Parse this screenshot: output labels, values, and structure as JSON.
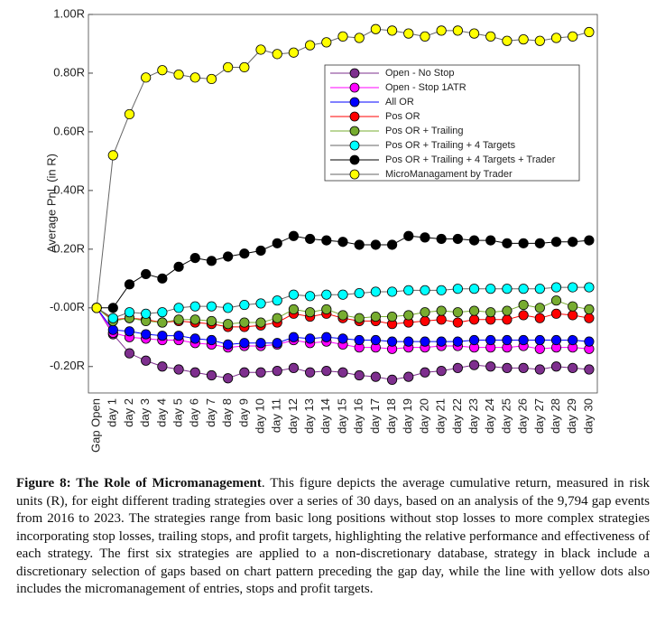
{
  "chart_data": {
    "type": "line",
    "ylabel": "Average PnL (in R)",
    "categories": [
      "Gap Open",
      "day 1",
      "day 2",
      "day 3",
      "day 4",
      "day 5",
      "day 6",
      "day 7",
      "day 8",
      "day 9",
      "day 10",
      "day 11",
      "day 12",
      "day 13",
      "day 14",
      "day 15",
      "day 16",
      "day 17",
      "day 18",
      "day 19",
      "day 20",
      "day 21",
      "day 22",
      "day 23",
      "day 24",
      "day 25",
      "day 26",
      "day 27",
      "day 28",
      "day 29",
      "day 30"
    ],
    "ylim": [
      -0.29,
      1.0
    ],
    "yticks": [
      {
        "value": -0.2,
        "label": "-0.20R"
      },
      {
        "value": 0,
        "label": "-0.00R"
      },
      {
        "value": 0.2,
        "label": "0.20R"
      },
      {
        "value": 0.4,
        "label": "0.40R"
      },
      {
        "value": 0.6,
        "label": "0.60R"
      },
      {
        "value": 0.8,
        "label": "0.80R"
      },
      {
        "value": 1.0,
        "label": "1.00R"
      }
    ],
    "series": [
      {
        "name": "Open - No Stop",
        "color": "#7e2f8e",
        "values": [
          0,
          -0.09,
          -0.155,
          -0.18,
          -0.2,
          -0.21,
          -0.22,
          -0.23,
          -0.24,
          -0.22,
          -0.22,
          -0.215,
          -0.205,
          -0.22,
          -0.215,
          -0.22,
          -0.23,
          -0.235,
          -0.245,
          -0.235,
          -0.22,
          -0.215,
          -0.205,
          -0.195,
          -0.2,
          -0.205,
          -0.205,
          -0.21,
          -0.2,
          -0.205,
          -0.21
        ]
      },
      {
        "name": "Open - Stop 1ATR",
        "color": "#ff00ff",
        "values": [
          0,
          -0.085,
          -0.1,
          -0.105,
          -0.11,
          -0.11,
          -0.12,
          -0.125,
          -0.135,
          -0.13,
          -0.13,
          -0.125,
          -0.11,
          -0.12,
          -0.115,
          -0.125,
          -0.135,
          -0.135,
          -0.14,
          -0.135,
          -0.135,
          -0.13,
          -0.13,
          -0.135,
          -0.135,
          -0.135,
          -0.13,
          -0.14,
          -0.135,
          -0.135,
          -0.14
        ]
      },
      {
        "name": "All OR",
        "color": "#0000ff",
        "values": [
          0,
          -0.075,
          -0.08,
          -0.09,
          -0.095,
          -0.095,
          -0.105,
          -0.11,
          -0.125,
          -0.12,
          -0.12,
          -0.12,
          -0.1,
          -0.105,
          -0.1,
          -0.105,
          -0.11,
          -0.11,
          -0.115,
          -0.115,
          -0.115,
          -0.115,
          -0.115,
          -0.11,
          -0.11,
          -0.11,
          -0.11,
          -0.11,
          -0.11,
          -0.11,
          -0.115
        ]
      },
      {
        "name": "Pos OR",
        "color": "#ff0000",
        "values": [
          0,
          -0.04,
          -0.035,
          -0.04,
          -0.05,
          -0.045,
          -0.05,
          -0.055,
          -0.065,
          -0.065,
          -0.06,
          -0.05,
          -0.02,
          -0.03,
          -0.02,
          -0.035,
          -0.045,
          -0.045,
          -0.055,
          -0.05,
          -0.045,
          -0.04,
          -0.05,
          -0.04,
          -0.04,
          -0.04,
          -0.025,
          -0.035,
          -0.02,
          -0.025,
          -0.035
        ]
      },
      {
        "name": "Pos OR + Trailing",
        "color": "#77ac30",
        "values": [
          0,
          -0.045,
          -0.035,
          -0.045,
          -0.05,
          -0.04,
          -0.04,
          -0.045,
          -0.055,
          -0.05,
          -0.05,
          -0.035,
          -0.005,
          -0.015,
          -0.005,
          -0.025,
          -0.035,
          -0.03,
          -0.03,
          -0.025,
          -0.015,
          -0.01,
          -0.015,
          -0.01,
          -0.015,
          -0.01,
          0.01,
          0,
          0.025,
          0.005,
          -0.005
        ]
      },
      {
        "name": "Pos OR + Trailing + 4 Targets",
        "color": "#00ffff",
        "values": [
          0,
          -0.035,
          -0.015,
          -0.02,
          -0.015,
          0,
          0.005,
          0.005,
          0,
          0.01,
          0.015,
          0.025,
          0.045,
          0.04,
          0.045,
          0.045,
          0.05,
          0.055,
          0.055,
          0.06,
          0.06,
          0.06,
          0.065,
          0.065,
          0.065,
          0.065,
          0.065,
          0.065,
          0.07,
          0.07,
          0.07
        ]
      },
      {
        "name": "Pos OR + Trailing + 4 Targets + Trader",
        "color": "#000000",
        "values": [
          0,
          0,
          0.08,
          0.115,
          0.1,
          0.14,
          0.17,
          0.16,
          0.175,
          0.185,
          0.195,
          0.22,
          0.245,
          0.235,
          0.23,
          0.225,
          0.215,
          0.215,
          0.215,
          0.245,
          0.24,
          0.235,
          0.235,
          0.23,
          0.23,
          0.22,
          0.22,
          0.22,
          0.225,
          0.225,
          0.23
        ]
      },
      {
        "name": "MicroManagament by Trader",
        "color": "#ffff00",
        "values": [
          0,
          0.52,
          0.66,
          0.785,
          0.81,
          0.795,
          0.785,
          0.78,
          0.82,
          0.82,
          0.88,
          0.865,
          0.87,
          0.895,
          0.905,
          0.925,
          0.92,
          0.95,
          0.945,
          0.935,
          0.925,
          0.945,
          0.945,
          0.935,
          0.925,
          0.91,
          0.915,
          0.91,
          0.92,
          0.925,
          0.94
        ]
      }
    ]
  },
  "caption": {
    "label": "Figure 8: The Role of Micromanagement",
    "text": ". This figure depicts the average cumulative return, measured in risk units (R), for eight different trading strategies over a series of 30 days, based on an analysis of the 9,794 gap events from 2016 to 2023. The strategies range from basic long positions without stop losses to more complex strategies incorporating stop losses, trailing stops, and profit targets, highlighting the relative performance and effectiveness of each strategy. The first six strategies are applied to a non-discretionary database, strategy in black include a discretionary selection of gaps based on chart pattern preceding the gap day, while the line with yellow dots also includes the micromanagement of entries, stops and profit targets."
  }
}
